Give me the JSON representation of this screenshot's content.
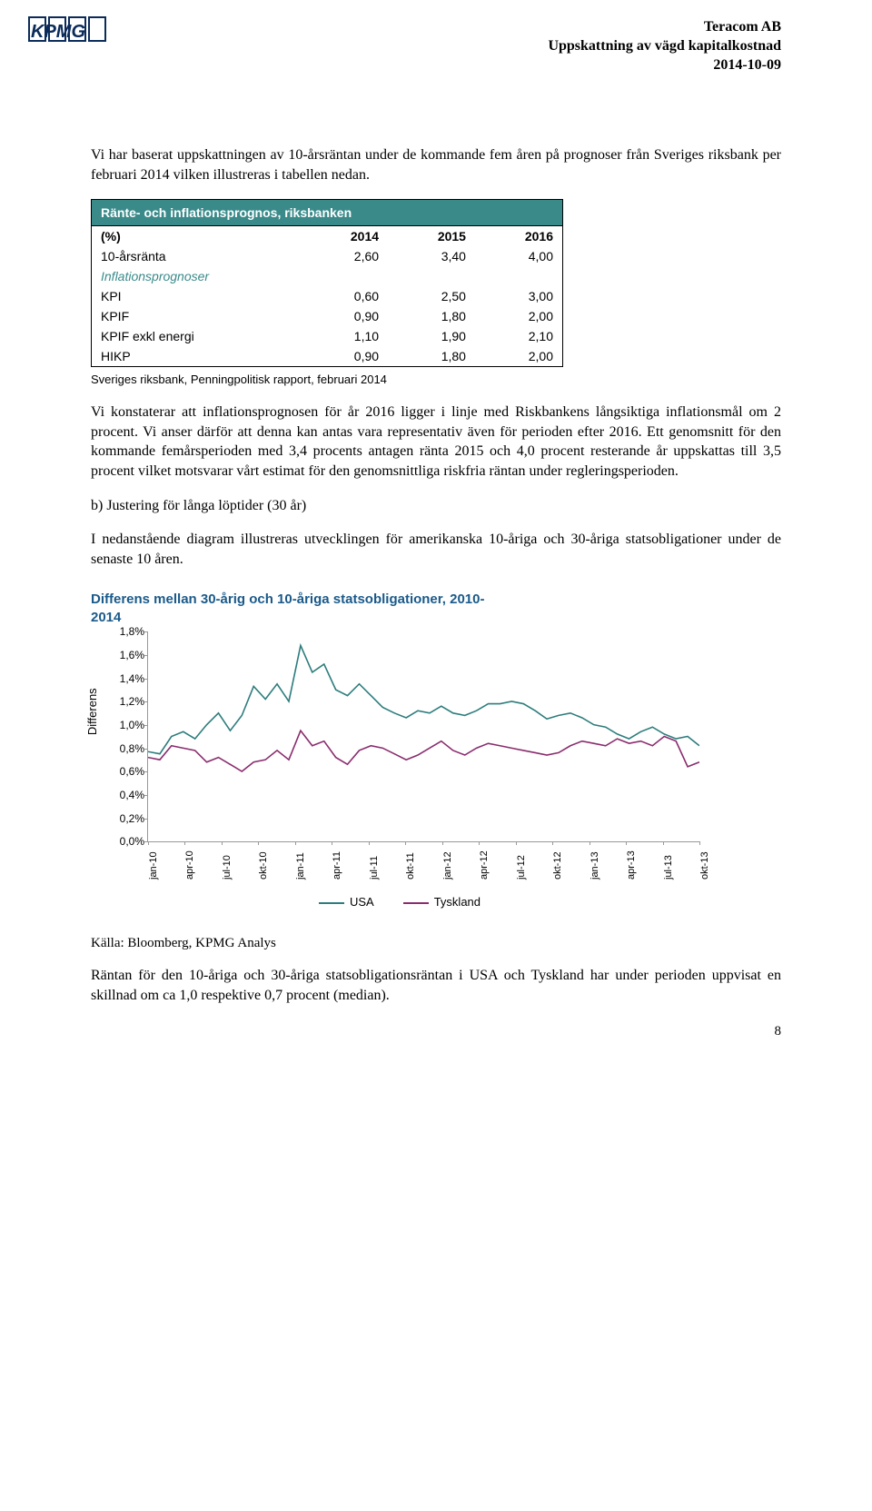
{
  "header": {
    "company": "Teracom AB",
    "subtitle": "Uppskattning av vägd kapitalkostnad",
    "date": "2014-10-09"
  },
  "para1": "Vi har baserat uppskattningen av 10-årsräntan under de kommande fem åren på prognoser från Sveriges riksbank per februari 2014 vilken illustreras i tabellen nedan.",
  "table": {
    "title": "Ränte- och inflationsprognos, riksbanken",
    "header_bg": "#3b8a8a",
    "cols": [
      "(%)",
      "2014",
      "2015",
      "2016"
    ],
    "section_label": "Inflationsprognoser",
    "rows": [
      [
        "10-årsränta",
        "2,60",
        "3,40",
        "4,00"
      ],
      [
        "KPI",
        "0,60",
        "2,50",
        "3,00"
      ],
      [
        "KPIF",
        "0,90",
        "1,80",
        "2,00"
      ],
      [
        "KPIF exkl energi",
        "1,10",
        "1,90",
        "2,10"
      ],
      [
        "HIKP",
        "0,90",
        "1,80",
        "2,00"
      ]
    ],
    "source": "Sveriges riksbank, Penningpolitisk rapport, februari 2014"
  },
  "para2": "Vi konstaterar att inflationsprognosen för år 2016 ligger i linje med Riskbankens långsiktiga inflationsmål om 2 procent. Vi anser därför att denna kan antas vara representativ även för perioden efter 2016. Ett genomsnitt för den kommande femårsperioden med 3,4 procents antagen ränta 2015 och 4,0 procent resterande år uppskattas till 3,5 procent vilket motsvarar vårt estimat för den genomsnittliga riskfria räntan under regleringsperioden.",
  "subhead": "b) Justering för långa löptider (30 år)",
  "para3": "I nedanstående diagram illustreras utvecklingen för amerikanska 10-åriga och 30-åriga statsobligationer under de senaste 10 åren.",
  "chart": {
    "title_l1": "Differens mellan 30-årig och 10-åriga statsobligationer, 2010-",
    "title_l2": "2014",
    "title_color": "#1a5a8a",
    "y_label": "Differens",
    "ylim": [
      0.0,
      1.8
    ],
    "yticks": [
      "0,0%",
      "0,2%",
      "0,4%",
      "0,6%",
      "0,8%",
      "1,0%",
      "1,2%",
      "1,4%",
      "1,6%",
      "1,8%"
    ],
    "xticks": [
      "jan-10",
      "apr-10",
      "jul-10",
      "okt-10",
      "jan-11",
      "apr-11",
      "jul-11",
      "okt-11",
      "jan-12",
      "apr-12",
      "jul-12",
      "okt-12",
      "jan-13",
      "apr-13",
      "jul-13",
      "okt-13"
    ],
    "series": [
      {
        "name": "USA",
        "color": "#2e7d7d",
        "values": [
          0.77,
          0.75,
          0.9,
          0.94,
          0.88,
          1.0,
          1.1,
          0.95,
          1.08,
          1.33,
          1.22,
          1.35,
          1.2,
          1.68,
          1.45,
          1.52,
          1.3,
          1.25,
          1.35,
          1.25,
          1.15,
          1.1,
          1.06,
          1.12,
          1.1,
          1.16,
          1.1,
          1.08,
          1.12,
          1.18,
          1.18,
          1.2,
          1.18,
          1.12,
          1.05,
          1.08,
          1.1,
          1.06,
          1.0,
          0.98,
          0.92,
          0.88,
          0.94,
          0.98,
          0.92,
          0.88,
          0.9,
          0.82
        ]
      },
      {
        "name": "Tyskland",
        "color": "#8a2d6e",
        "values": [
          0.72,
          0.7,
          0.82,
          0.8,
          0.78,
          0.68,
          0.72,
          0.66,
          0.6,
          0.68,
          0.7,
          0.78,
          0.7,
          0.95,
          0.82,
          0.86,
          0.72,
          0.66,
          0.78,
          0.82,
          0.8,
          0.75,
          0.7,
          0.74,
          0.8,
          0.86,
          0.78,
          0.74,
          0.8,
          0.84,
          0.82,
          0.8,
          0.78,
          0.76,
          0.74,
          0.76,
          0.82,
          0.86,
          0.84,
          0.82,
          0.88,
          0.84,
          0.86,
          0.82,
          0.9,
          0.86,
          0.64,
          0.68
        ]
      }
    ],
    "legend": [
      "USA",
      "Tyskland"
    ]
  },
  "source2": "Källa: Bloomberg, KPMG Analys",
  "para4": "Räntan för den 10-åriga och 30-åriga statsobligationsräntan i USA och Tyskland har under perioden uppvisat en skillnad om ca 1,0 respektive 0,7 procent (median).",
  "page_number": "8"
}
